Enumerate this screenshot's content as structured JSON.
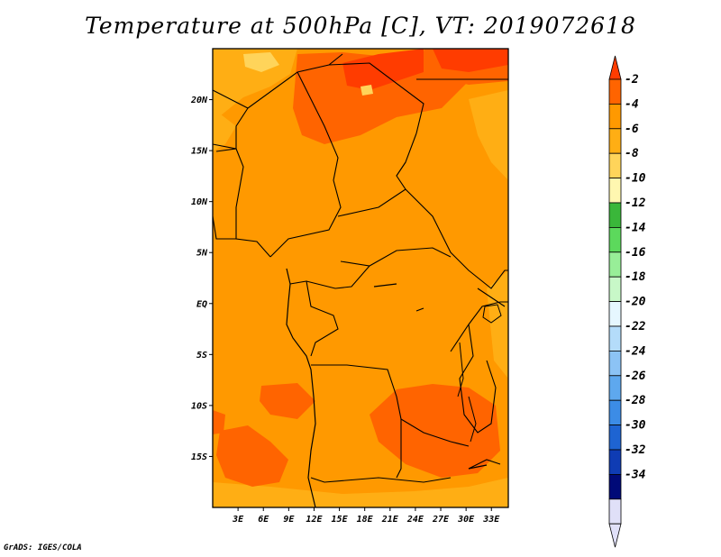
{
  "title": "Temperature at 500hPa [C], VT: 2019072618",
  "credit": "GrADS: IGES/COLA",
  "map": {
    "lat_labels": [
      "20N",
      "15N",
      "10N",
      "5N",
      "EQ",
      "5S",
      "10S",
      "15S"
    ],
    "lat_values": [
      20,
      15,
      10,
      5,
      0,
      -5,
      -10,
      -15
    ],
    "lon_labels": [
      "3E",
      "6E",
      "9E",
      "12E",
      "15E",
      "18E",
      "21E",
      "24E",
      "27E",
      "30E",
      "33E"
    ],
    "lon_values": [
      3,
      6,
      9,
      12,
      15,
      18,
      21,
      24,
      27,
      30,
      33
    ],
    "lon_range": [
      0,
      35
    ],
    "lat_range": [
      -20,
      25
    ]
  },
  "colorbar": {
    "labels": [
      "-2",
      "-4",
      "-6",
      "-8",
      "-10",
      "-12",
      "-14",
      "-16",
      "-18",
      "-20",
      "-22",
      "-24",
      "-26",
      "-28",
      "-30",
      "-32",
      "-34"
    ],
    "colors": [
      "#ff3c00",
      "#ff6400",
      "#ff9900",
      "#ffae14",
      "#ffd45a",
      "#fff7b0",
      "#3ab73a",
      "#5cd95c",
      "#98ee98",
      "#c8f8c8",
      "#e6f7ff",
      "#b4dcfa",
      "#8cc3f5",
      "#5ea8ee",
      "#3c8ce6",
      "#1e64d2",
      "#0f3cb4",
      "#000a78",
      "#e0e0f8"
    ],
    "top_color": "#ff3c00",
    "bottom_color": "#e0e0f8"
  }
}
